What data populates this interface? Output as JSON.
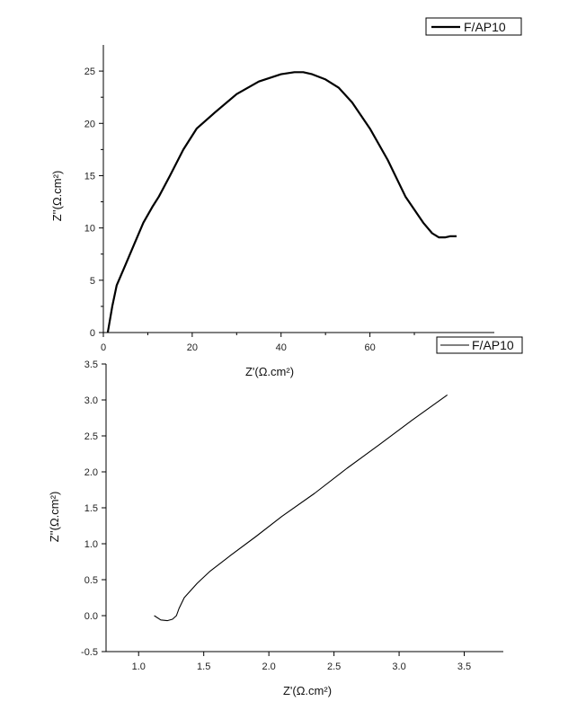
{
  "chart_data": [
    {
      "type": "line",
      "xlabel": "Z'(Ω.cm²)",
      "ylabel": "Z''(Ω.cm²)",
      "xlim": [
        0,
        88
      ],
      "ylim": [
        0,
        27.5
      ],
      "xticks": [
        0,
        20,
        40,
        60
      ],
      "yticks": [
        0,
        5,
        10,
        15,
        20,
        25
      ],
      "grid": false,
      "legend_position": "top-right",
      "series": [
        {
          "name": "F/AP10",
          "color": "#000000",
          "x": [
            1.0,
            2.0,
            3.0,
            5.0,
            7.0,
            9.0,
            11.0,
            12.5,
            15.0,
            18.0,
            21.0,
            25.0,
            30.0,
            35.0,
            40.0,
            43.0,
            45.0,
            47.0,
            50.0,
            53.0,
            56.0,
            60.0,
            64.0,
            68.0,
            72.0,
            74.0,
            75.5,
            77.0,
            78.0,
            79.5
          ],
          "y": [
            0.0,
            2.5,
            4.5,
            6.5,
            8.5,
            10.5,
            12.0,
            13.0,
            15.0,
            17.5,
            19.5,
            21.0,
            22.8,
            24.0,
            24.7,
            24.9,
            24.9,
            24.7,
            24.2,
            23.4,
            22.0,
            19.5,
            16.5,
            13.0,
            10.5,
            9.5,
            9.1,
            9.1,
            9.2,
            9.2
          ]
        }
      ]
    },
    {
      "type": "line",
      "xlabel": "Z'(Ω.cm²)",
      "ylabel": "Z''(Ω.cm²)",
      "xlim": [
        0.75,
        3.8
      ],
      "ylim": [
        -0.5,
        3.5
      ],
      "xticks": [
        1.0,
        1.5,
        2.0,
        2.5,
        3.0,
        3.5
      ],
      "yticks": [
        -0.5,
        0.0,
        0.5,
        1.0,
        1.5,
        2.0,
        2.5,
        3.0,
        3.5
      ],
      "grid": false,
      "legend_position": "top-right",
      "series": [
        {
          "name": "F/AP10",
          "color": "#000000",
          "x": [
            1.12,
            1.17,
            1.22,
            1.26,
            1.29,
            1.31,
            1.35,
            1.45,
            1.55,
            1.7,
            1.9,
            2.1,
            2.35,
            2.6,
            2.85,
            3.1,
            3.37
          ],
          "y": [
            0.0,
            -0.06,
            -0.07,
            -0.05,
            0.0,
            0.1,
            0.25,
            0.45,
            0.62,
            0.83,
            1.1,
            1.38,
            1.7,
            2.05,
            2.38,
            2.72,
            3.07
          ]
        }
      ]
    }
  ]
}
